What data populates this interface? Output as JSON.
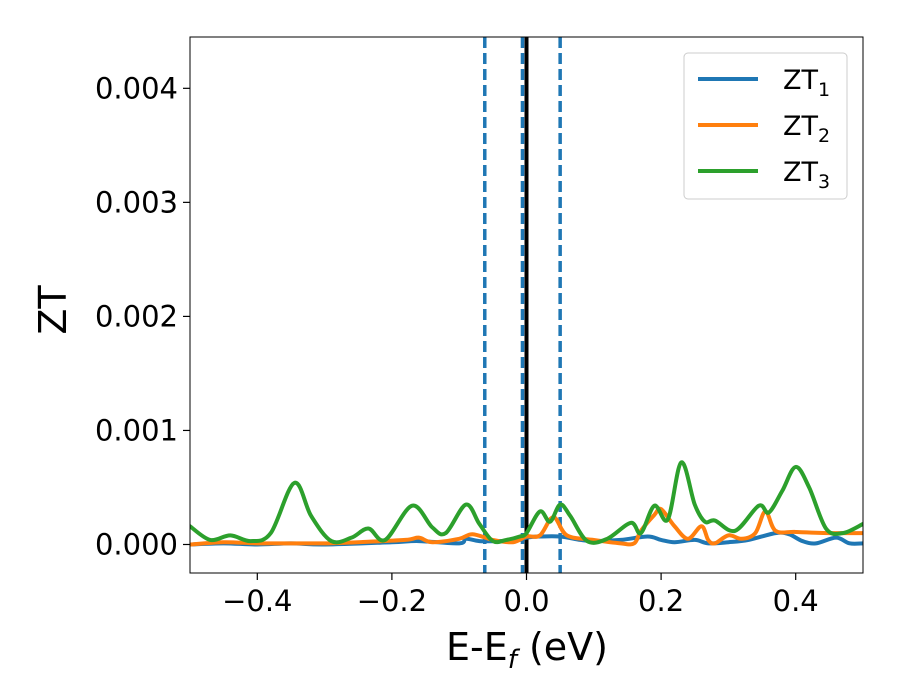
{
  "chart_data": {
    "type": "line",
    "xlabel": "E-E",
    "xlabel_sub": "f",
    "xlabel_unit": " (eV)",
    "ylabel": "ZT",
    "xlim": [
      -0.5,
      0.5
    ],
    "ylim": [
      -0.00025,
      0.00445
    ],
    "xticks": [
      -0.4,
      -0.2,
      0.0,
      0.2,
      0.4
    ],
    "xtick_labels": [
      "−0.4",
      "−0.2",
      "0.0",
      "0.2",
      "0.4"
    ],
    "yticks": [
      0.0,
      0.001,
      0.002,
      0.003,
      0.004
    ],
    "ytick_labels": [
      "0.000",
      "0.001",
      "0.002",
      "0.003",
      "0.004"
    ],
    "grid": false,
    "legend_position": "top-right",
    "vlines": [
      {
        "x": -0.062,
        "style": "dashed",
        "color": "#1f77b4"
      },
      {
        "x": -0.006,
        "style": "dashed",
        "color": "#1f77b4"
      },
      {
        "x": 0.05,
        "style": "dashed",
        "color": "#1f77b4"
      },
      {
        "x": 0.0,
        "style": "solid",
        "color": "#000000"
      }
    ],
    "series": [
      {
        "name": "ZT",
        "name_sub": "1",
        "color": "#1f77b4",
        "points": [
          [
            -0.5,
            0.0
          ],
          [
            -0.45,
            1e-05
          ],
          [
            -0.4,
            0.0
          ],
          [
            -0.35,
            1e-05
          ],
          [
            -0.3,
            0.0
          ],
          [
            -0.2,
            2e-05
          ],
          [
            -0.16,
            3e-05
          ],
          [
            -0.1,
            1e-05
          ],
          [
            -0.09,
            5e-05
          ],
          [
            -0.07,
            3e-05
          ],
          [
            -0.04,
            3e-05
          ],
          [
            -0.01,
            4e-05
          ],
          [
            0.0,
            6e-05
          ],
          [
            0.02,
            7e-05
          ],
          [
            0.05,
            7e-05
          ],
          [
            0.08,
            4e-05
          ],
          [
            0.1,
            3e-05
          ],
          [
            0.14,
            4e-05
          ],
          [
            0.18,
            7e-05
          ],
          [
            0.2,
            4e-05
          ],
          [
            0.22,
            2e-05
          ],
          [
            0.25,
            4e-05
          ],
          [
            0.27,
            1e-05
          ],
          [
            0.3,
            2e-05
          ],
          [
            0.33,
            4e-05
          ],
          [
            0.37,
            0.0001
          ],
          [
            0.39,
            9e-05
          ],
          [
            0.41,
            3e-05
          ],
          [
            0.43,
            1e-05
          ],
          [
            0.46,
            6e-05
          ],
          [
            0.48,
            1e-05
          ],
          [
            0.5,
            1e-05
          ]
        ]
      },
      {
        "name": "ZT",
        "name_sub": "2",
        "color": "#ff7f0e",
        "points": [
          [
            -0.5,
            0.0
          ],
          [
            -0.45,
            2e-05
          ],
          [
            -0.4,
            1e-05
          ],
          [
            -0.35,
            1e-05
          ],
          [
            -0.3,
            1e-05
          ],
          [
            -0.25,
            2e-05
          ],
          [
            -0.18,
            4e-05
          ],
          [
            -0.16,
            6e-05
          ],
          [
            -0.14,
            2e-05
          ],
          [
            -0.1,
            5e-05
          ],
          [
            -0.08,
            9e-05
          ],
          [
            -0.05,
            4e-05
          ],
          [
            -0.02,
            2e-05
          ],
          [
            0.0,
            7e-05
          ],
          [
            0.02,
            8e-05
          ],
          [
            0.04,
            0.00024
          ],
          [
            0.06,
            8e-05
          ],
          [
            0.1,
            4e-05
          ],
          [
            0.14,
            1e-05
          ],
          [
            0.16,
            1e-05
          ],
          [
            0.17,
            0.00012
          ],
          [
            0.19,
            0.00026
          ],
          [
            0.2,
            0.00031
          ],
          [
            0.22,
            0.00016
          ],
          [
            0.24,
            5e-05
          ],
          [
            0.26,
            0.00016
          ],
          [
            0.27,
            4e-05
          ],
          [
            0.28,
            1e-05
          ],
          [
            0.3,
            8e-05
          ],
          [
            0.32,
            5e-05
          ],
          [
            0.34,
            0.0001
          ],
          [
            0.355,
            0.00029
          ],
          [
            0.37,
            0.00012
          ],
          [
            0.4,
            0.00011
          ],
          [
            0.45,
            0.0001
          ],
          [
            0.5,
            0.0001
          ]
        ]
      },
      {
        "name": "ZT",
        "name_sub": "3",
        "color": "#2ca02c",
        "points": [
          [
            -0.5,
            0.00016
          ],
          [
            -0.47,
            4e-05
          ],
          [
            -0.44,
            8e-05
          ],
          [
            -0.41,
            3e-05
          ],
          [
            -0.38,
            0.0001
          ],
          [
            -0.345,
            0.00054
          ],
          [
            -0.32,
            0.00025
          ],
          [
            -0.29,
            3e-05
          ],
          [
            -0.26,
            6e-05
          ],
          [
            -0.235,
            0.00014
          ],
          [
            -0.21,
            4e-05
          ],
          [
            -0.17,
            0.00034
          ],
          [
            -0.14,
            0.00015
          ],
          [
            -0.12,
            0.0001
          ],
          [
            -0.09,
            0.00035
          ],
          [
            -0.07,
            0.00018
          ],
          [
            -0.05,
            3e-05
          ],
          [
            -0.03,
            4e-05
          ],
          [
            -0.01,
            7e-05
          ],
          [
            0.0,
            0.0001
          ],
          [
            0.02,
            0.00029
          ],
          [
            0.035,
            0.0002
          ],
          [
            0.05,
            0.00035
          ],
          [
            0.065,
            0.00025
          ],
          [
            0.09,
            3e-05
          ],
          [
            0.12,
            5e-05
          ],
          [
            0.155,
            0.00019
          ],
          [
            0.17,
            0.0001
          ],
          [
            0.19,
            0.00034
          ],
          [
            0.21,
            0.00022
          ],
          [
            0.23,
            0.00072
          ],
          [
            0.25,
            0.00035
          ],
          [
            0.265,
            0.0002
          ],
          [
            0.28,
            0.00021
          ],
          [
            0.31,
            0.00012
          ],
          [
            0.345,
            0.00034
          ],
          [
            0.36,
            0.00028
          ],
          [
            0.38,
            0.00047
          ],
          [
            0.4,
            0.00068
          ],
          [
            0.42,
            0.0005
          ],
          [
            0.445,
            0.00014
          ],
          [
            0.47,
            0.0001
          ],
          [
            0.5,
            0.00018
          ]
        ]
      }
    ]
  }
}
